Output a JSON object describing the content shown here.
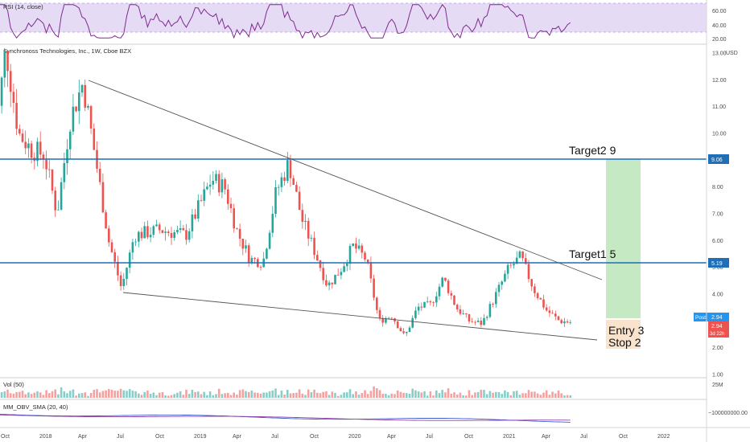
{
  "rsi": {
    "label": "RSI (14, close)",
    "ticks": [
      "60.00",
      "40.00",
      "20.00"
    ],
    "band": {
      "top": 70,
      "bottom": 30
    },
    "line_color": "#7e2b8e",
    "band_color": "#e6dbf5"
  },
  "main": {
    "title": "Synchronoss Technologies, Inc., 1W, Cboe BZX",
    "currency": "USD",
    "price_ticks": [
      "13.00",
      "12.00",
      "11.00",
      "10.00",
      "9.00",
      "8.00",
      "7.00",
      "6.00",
      "5.00",
      "4.00",
      "3.00",
      "2.00",
      "1.00"
    ],
    "up_color": "#26a69a",
    "down_color": "#ef5350"
  },
  "volume": {
    "label": "Vol (50)",
    "tick": "25M"
  },
  "obv": {
    "label": "MM_OBV_SMA (20, 40)",
    "tick": "−100000000.00"
  },
  "x_axis": [
    "Oct",
    "2018",
    "Apr",
    "Jul",
    "Oct",
    "2019",
    "Apr",
    "Jul",
    "Oct",
    "2020",
    "Apr",
    "Jul",
    "Oct",
    "2021",
    "Apr",
    "Jul",
    "Oct",
    "2022"
  ],
  "annotations": {
    "target2": "Target2 9",
    "target1": "Target1 5",
    "entry": "Entry 3",
    "stop": "Stop  2"
  },
  "price_badges": {
    "target2": "9.06",
    "target1": "5.19",
    "post_label": "Post",
    "post_value": "2.94",
    "last_value": "2.94",
    "last_countdown": "3d 22h"
  },
  "chart_data": {
    "type": "candlestick",
    "title": "Synchronoss Technologies, Inc., 1W, Cboe BZX",
    "ylim": [
      1,
      13.2
    ],
    "horizontal_levels": [
      {
        "label": "Target2 9",
        "value": 9.06,
        "color": "#1e6fb8"
      },
      {
        "label": "Target1 5",
        "value": 5.19,
        "color": "#1e6fb8"
      }
    ],
    "trendlines": [
      {
        "from": {
          "date": "2018-04",
          "price": 12.1
        },
        "to": {
          "date": "2021-06",
          "price": 4.55
        }
      },
      {
        "from": {
          "date": "2018-07",
          "price": 4.1
        },
        "to": {
          "date": "2021-06",
          "price": 2.3
        }
      }
    ],
    "position": {
      "entry": 3,
      "stop": 2,
      "target": 9
    },
    "price_path": [
      {
        "date": "2017-09",
        "price": 9.0
      },
      {
        "date": "2017-10",
        "price": 13.2
      },
      {
        "date": "2017-11",
        "price": 10.0
      },
      {
        "date": "2017-12",
        "price": 9.4
      },
      {
        "date": "2018-01",
        "price": 9.2
      },
      {
        "date": "2018-02",
        "price": 7.0
      },
      {
        "date": "2018-03",
        "price": 10.5
      },
      {
        "date": "2018-04",
        "price": 11.9
      },
      {
        "date": "2018-05",
        "price": 9.0
      },
      {
        "date": "2018-06",
        "price": 6.0
      },
      {
        "date": "2018-07",
        "price": 4.2
      },
      {
        "date": "2018-08",
        "price": 6.2
      },
      {
        "date": "2018-10",
        "price": 6.4
      },
      {
        "date": "2018-12",
        "price": 6.2
      },
      {
        "date": "2019-02",
        "price": 8.3
      },
      {
        "date": "2019-03",
        "price": 8.0
      },
      {
        "date": "2019-04",
        "price": 6.3
      },
      {
        "date": "2019-05",
        "price": 5.3
      },
      {
        "date": "2019-06",
        "price": 5.2
      },
      {
        "date": "2019-07",
        "price": 7.8
      },
      {
        "date": "2019-08",
        "price": 8.9
      },
      {
        "date": "2019-09",
        "price": 6.8
      },
      {
        "date": "2019-10",
        "price": 5.6
      },
      {
        "date": "2019-11",
        "price": 4.3
      },
      {
        "date": "2019-12",
        "price": 4.9
      },
      {
        "date": "2020-01",
        "price": 5.8
      },
      {
        "date": "2020-02",
        "price": 5.3
      },
      {
        "date": "2020-03",
        "price": 3.0
      },
      {
        "date": "2020-04",
        "price": 3.2
      },
      {
        "date": "2020-05",
        "price": 2.4
      },
      {
        "date": "2020-06",
        "price": 3.5
      },
      {
        "date": "2020-07",
        "price": 3.6
      },
      {
        "date": "2020-08",
        "price": 4.6
      },
      {
        "date": "2020-09",
        "price": 3.5
      },
      {
        "date": "2020-10",
        "price": 3.0
      },
      {
        "date": "2020-11",
        "price": 2.9
      },
      {
        "date": "2020-12",
        "price": 3.9
      },
      {
        "date": "2021-01",
        "price": 4.9
      },
      {
        "date": "2021-02",
        "price": 5.4
      },
      {
        "date": "2021-03",
        "price": 4.2
      },
      {
        "date": "2021-04",
        "price": 3.4
      },
      {
        "date": "2021-05",
        "price": 3.0
      },
      {
        "date": "2021-06",
        "price": 2.94
      }
    ]
  }
}
